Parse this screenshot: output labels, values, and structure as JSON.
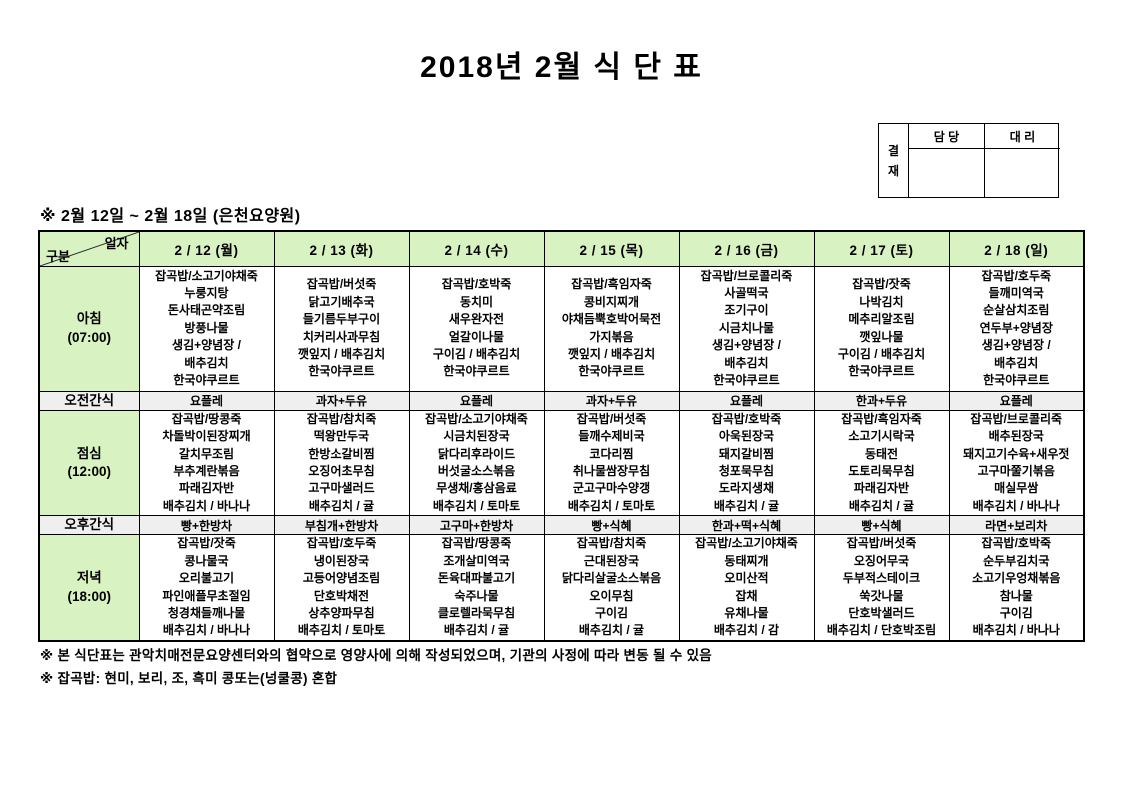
{
  "title": "2018년  2월  식  단  표",
  "approval": {
    "stamp": "결재",
    "headers": [
      "담 당",
      "대 리"
    ]
  },
  "subtitle": "※  2월  12일  ~  2월  18일  (은천요양원)",
  "table": {
    "corner": {
      "top": "일자",
      "bottom": "구분"
    },
    "day_headers": [
      "2 / 12 (월)",
      "2 / 13 (화)",
      "2 / 14 (수)",
      "2 / 15 (목)",
      "2 / 16 (금)",
      "2 / 17 (토)",
      "2 / 18 (일)"
    ],
    "rows": [
      {
        "id": "breakfast",
        "kind": "meal",
        "label": "아침",
        "time": "(07:00)",
        "cells": [
          [
            "잡곡밥/소고기야채죽",
            "누룽지탕",
            "돈사태곤약조림",
            "방풍나물",
            "생김+양념장 /",
            "배추김치",
            "한국야쿠르트"
          ],
          [
            "잡곡밥/버섯죽",
            "닭고기배추국",
            "들기름두부구이",
            "치커리사과무침",
            "깻잎지 / 배추김치",
            "한국야쿠르트"
          ],
          [
            "잡곡밥/호박죽",
            "동치미",
            "새우완자전",
            "얼갈이나물",
            "구이김 / 배추김치",
            "한국야쿠르트"
          ],
          [
            "잡곡밥/흑임자죽",
            "콩비지찌개",
            "야채듬뿍호박어묵전",
            "가지볶음",
            "깻잎지 / 배추김치",
            "한국야쿠르트"
          ],
          [
            "잡곡밥/브로콜리죽",
            "사골떡국",
            "조기구이",
            "시금치나물",
            "생김+양념장 /",
            "배추김치",
            "한국야쿠르트"
          ],
          [
            "잡곡밥/잣죽",
            "나박김치",
            "메추리알조림",
            "깻잎나물",
            "구이김 / 배추김치",
            "한국야쿠르트"
          ],
          [
            "잡곡밥/호두죽",
            "들깨미역국",
            "순살삼치조림",
            "연두부+양념장",
            "생김+양념장 /",
            "배추김치",
            "한국야쿠르트"
          ]
        ]
      },
      {
        "id": "am-snack",
        "kind": "snack",
        "label": "오전간식",
        "cells": [
          "요플레",
          "과자+두유",
          "요플레",
          "과자+두유",
          "요플레",
          "한과+두유",
          "요플레"
        ]
      },
      {
        "id": "lunch",
        "kind": "meal",
        "label": "점심",
        "time": "(12:00)",
        "cells": [
          [
            "잡곡밥/땅콩죽",
            "차돌박이된장찌개",
            "갈치무조림",
            "부추계란볶음",
            "파래김자반",
            "배추김치 / 바나나"
          ],
          [
            "잡곡밥/참치죽",
            "떡왕만두국",
            "한방소갈비찜",
            "오징어초무침",
            "고구마샐러드",
            "배추김치 / 귤"
          ],
          [
            "잡곡밥/소고기야채죽",
            "시금치된장국",
            "닭다리후라이드",
            "버섯굴소스볶음",
            "무생채/홍삼음료",
            "배추김치 / 토마토"
          ],
          [
            "잡곡밥/버섯죽",
            "들깨수제비국",
            "코다리찜",
            "취나물쌈장무침",
            "군고구마수양갱",
            "배추김치 / 토마토"
          ],
          [
            "잡곡밥/호박죽",
            "아욱된장국",
            "돼지갈비찜",
            "청포묵무침",
            "도라지생채",
            "배추김치 / 귤"
          ],
          [
            "잡곡밥/흑임자죽",
            "소고기시락국",
            "동태전",
            "도토리묵무침",
            "파래김자반",
            "배추김치 / 귤"
          ],
          [
            "잡곡밥/브로콜리죽",
            "배추된장국",
            "돼지고기수육+새우젓",
            "고구마쭐기볶음",
            "매실무쌈",
            "배추김치 / 바나나"
          ]
        ]
      },
      {
        "id": "pm-snack",
        "kind": "snack",
        "label": "오후간식",
        "cells": [
          "빵+한방차",
          "부침개+한방차",
          "고구마+한방차",
          "빵+식혜",
          "한과+떡+식혜",
          "빵+식혜",
          "라면+보리차"
        ]
      },
      {
        "id": "dinner",
        "kind": "meal",
        "label": "저녁",
        "time": "(18:00)",
        "cells": [
          [
            "잡곡밥/잣죽",
            "콩나물국",
            "오리불고기",
            "파인애플무초절임",
            "청경채들깨나물",
            "배추김치 / 바나나"
          ],
          [
            "잡곡밥/호두죽",
            "냉이된장국",
            "고등어양념조림",
            "단호박채전",
            "상추양파무침",
            "배추김치 / 토마토"
          ],
          [
            "잡곡밥/땅콩죽",
            "조개살미역국",
            "돈육대파불고기",
            "숙주나물",
            "클로렐라묵무침",
            "배추김치 / 귤"
          ],
          [
            "잡곡밥/참치죽",
            "근대된장국",
            "닭다리살굴소스볶음",
            "오이무침",
            "구이김",
            "배추김치 / 귤"
          ],
          [
            "잡곡밥/소고기야채죽",
            "동태찌개",
            "오미산적",
            "잡채",
            "유채나물",
            "배추김치 / 감"
          ],
          [
            "잡곡밥/버섯죽",
            "오징어무국",
            "두부적스테이크",
            "쑥갓나물",
            "단호박샐러드",
            "배추김치 / 단호박조림"
          ],
          [
            "잡곡밥/호박죽",
            "순두부김치국",
            "소고기우엉채볶음",
            "참나물",
            "구이김",
            "배추김치 / 바나나"
          ]
        ]
      }
    ]
  },
  "notes": [
    "※  본  식단표는  관악치매전문요양센터와의  협약으로  영양사에  의해  작성되었으며,  기관의  사정에  따라  변동  될  수  있음",
    "※  잡곡밥:  현미,  보리,  조,  흑미  콩또는(넝쿨콩)  혼합"
  ],
  "colors": {
    "header_green": "#d9f2c1",
    "snack_gray": "#efefef",
    "border": "#000000",
    "text": "#000000"
  }
}
